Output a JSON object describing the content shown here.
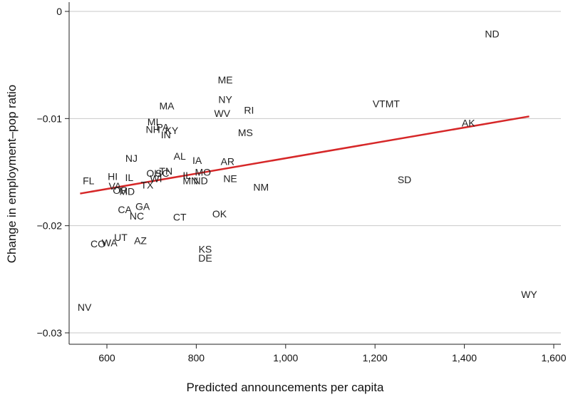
{
  "chart_data": {
    "type": "scatter",
    "title": "",
    "xlabel": "Predicted announcements per capita",
    "ylabel": "Change in employment–pop ratio",
    "xlim": [
      530,
      1605
    ],
    "ylim": [
      -0.0308,
      0.0008
    ],
    "xticks": [
      600,
      800,
      1000,
      1200,
      1400,
      1600
    ],
    "xtick_labels": [
      "600",
      "800",
      "1,000",
      "1,200",
      "1,400",
      "1,600"
    ],
    "yticks": [
      0,
      -0.01,
      -0.02,
      -0.03
    ],
    "ytick_labels": [
      "0",
      "−0.01",
      "−0.02",
      "−0.03"
    ],
    "grid": "horizontal",
    "points": [
      {
        "label": "ND",
        "x": 1462,
        "y": -0.0021
      },
      {
        "label": "ME",
        "x": 865,
        "y": -0.0064
      },
      {
        "label": "NY",
        "x": 865,
        "y": -0.0082
      },
      {
        "label": "RI",
        "x": 918,
        "y": -0.0092
      },
      {
        "label": "WV",
        "x": 858,
        "y": -0.0095
      },
      {
        "label": "MA",
        "x": 734,
        "y": -0.0088
      },
      {
        "label": "VTMT",
        "x": 1225,
        "y": -0.0086
      },
      {
        "label": "MI",
        "x": 703,
        "y": -0.0103
      },
      {
        "label": "NH",
        "x": 703,
        "y": -0.011
      },
      {
        "label": "PA",
        "x": 725,
        "y": -0.0108
      },
      {
        "label": "KY",
        "x": 745,
        "y": -0.0111
      },
      {
        "label": "IN",
        "x": 732,
        "y": -0.0115
      },
      {
        "label": "MS",
        "x": 910,
        "y": -0.0113
      },
      {
        "label": "AK",
        "x": 1409,
        "y": -0.0104
      },
      {
        "label": "NJ",
        "x": 655,
        "y": -0.0137
      },
      {
        "label": "AL",
        "x": 763,
        "y": -0.0135
      },
      {
        "label": "IA",
        "x": 802,
        "y": -0.0139
      },
      {
        "label": "AR",
        "x": 870,
        "y": -0.014
      },
      {
        "label": "OH",
        "x": 705,
        "y": -0.0151
      },
      {
        "label": "SC",
        "x": 724,
        "y": -0.0151
      },
      {
        "label": "TN",
        "x": 732,
        "y": -0.0149
      },
      {
        "label": "MO",
        "x": 815,
        "y": -0.015
      },
      {
        "label": "IL",
        "x": 779,
        "y": -0.0153
      },
      {
        "label": "WI",
        "x": 710,
        "y": -0.0156
      },
      {
        "label": "HI",
        "x": 613,
        "y": -0.0154
      },
      {
        "label": "IL",
        "x": 650,
        "y": -0.0155
      },
      {
        "label": "FL",
        "x": 559,
        "y": -0.0158
      },
      {
        "label": "MN",
        "x": 787,
        "y": -0.0158
      },
      {
        "label": "ND",
        "x": 810,
        "y": -0.0158
      },
      {
        "label": "NE",
        "x": 876,
        "y": -0.0156
      },
      {
        "label": "SD",
        "x": 1266,
        "y": -0.0157
      },
      {
        "label": "TX",
        "x": 690,
        "y": -0.0162
      },
      {
        "label": "VA",
        "x": 618,
        "y": -0.0163
      },
      {
        "label": "OR",
        "x": 630,
        "y": -0.0167
      },
      {
        "label": "MD",
        "x": 645,
        "y": -0.0168
      },
      {
        "label": "NM",
        "x": 945,
        "y": -0.0164
      },
      {
        "label": "GA",
        "x": 680,
        "y": -0.0182
      },
      {
        "label": "CA",
        "x": 640,
        "y": -0.0185
      },
      {
        "label": "NC",
        "x": 667,
        "y": -0.0191
      },
      {
        "label": "CT",
        "x": 763,
        "y": -0.0192
      },
      {
        "label": "OK",
        "x": 852,
        "y": -0.0189
      },
      {
        "label": "UT",
        "x": 631,
        "y": -0.0211
      },
      {
        "label": "AZ",
        "x": 675,
        "y": -0.0214
      },
      {
        "label": "WA",
        "x": 606,
        "y": -0.0216
      },
      {
        "label": "CO",
        "x": 580,
        "y": -0.0217
      },
      {
        "label": "KS",
        "x": 820,
        "y": -0.0222
      },
      {
        "label": "DE",
        "x": 820,
        "y": -0.023
      },
      {
        "label": "WY",
        "x": 1545,
        "y": -0.0264
      },
      {
        "label": "NV",
        "x": 550,
        "y": -0.0276
      }
    ],
    "fit_line": {
      "color": "#d62728",
      "x": [
        540,
        1545
      ],
      "y": [
        -0.017,
        -0.0098
      ]
    }
  }
}
